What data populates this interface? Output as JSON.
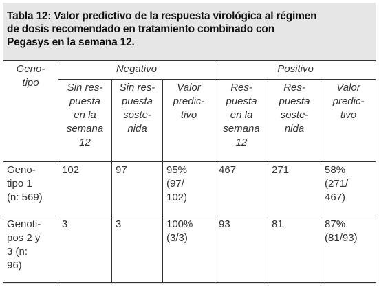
{
  "title": "Tabla 12: Valor predictivo de la respuesta virológica al régimen\nde dosis recomendado en tratamiento combinado con\nPegasys en la semana 12.",
  "table": {
    "corner": "Geno-\ntipo",
    "groups": [
      "Negativo",
      "Positivo"
    ],
    "columns": [
      "Sin res-\npuesta\nen la\nsemana\n12",
      "Sin res-\npuesta\nsoste-\nnida",
      "Valor\npredic-\ntivo",
      "Res-\npuesta\nen la\nsemana\n12",
      "Res-\npuesta\nsoste-\nnida",
      "Valor\npredic-\ntivo"
    ],
    "rows": [
      [
        "Geno-\ntipo 1\n(n: 569)",
        "102",
        "97",
        "95%\n(97/\n102)",
        "467",
        "271",
        "58%\n(271/\n467)"
      ],
      [
        "Genoti-\npos 2 y\n3 (n:\n96)",
        "3",
        "3",
        "100%\n(3/3)",
        "93",
        "81",
        "87%\n(81/93)"
      ]
    ]
  }
}
